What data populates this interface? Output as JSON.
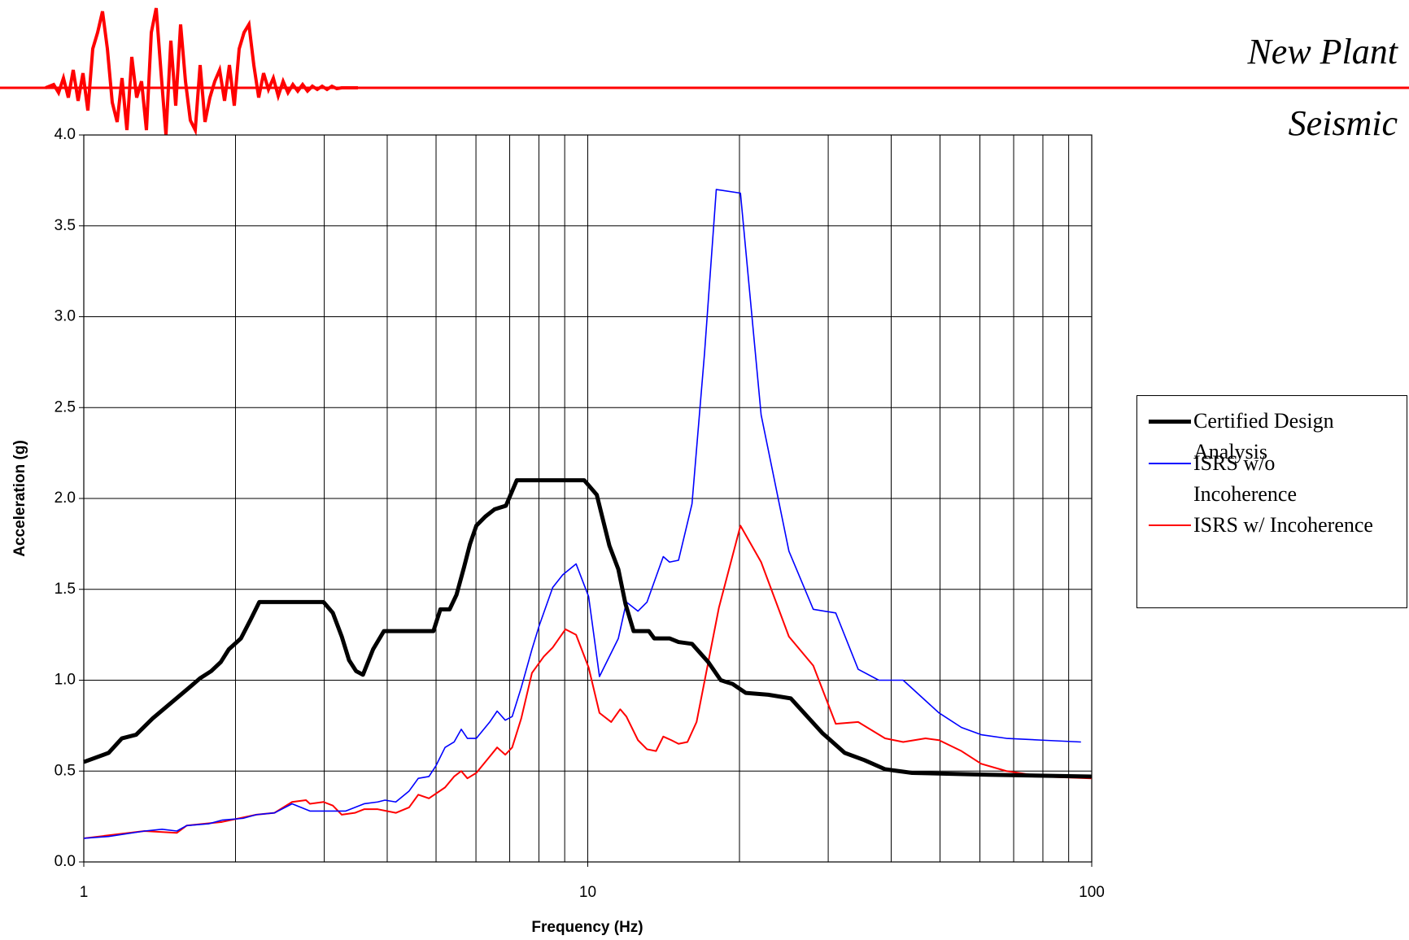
{
  "header": {
    "line1": "New Plant",
    "line2": "Seismic"
  },
  "chart_data": {
    "type": "line",
    "xlabel": "Frequency (Hz)",
    "ylabel": "Acceleration (g)",
    "xscale": "log",
    "xlim": [
      1,
      100
    ],
    "xticks": [
      1,
      10,
      100
    ],
    "minor_xticks": [
      2,
      3,
      4,
      5,
      6,
      7,
      8,
      9,
      20,
      30,
      40,
      50,
      60,
      70,
      80,
      90
    ],
    "ylim": [
      0,
      4
    ],
    "yticks": [
      {
        "value": 0,
        "label": "0.0"
      },
      {
        "value": 0.5,
        "label": "0.5"
      },
      {
        "value": 1,
        "label": "1.0"
      },
      {
        "value": 1.5,
        "label": "1.5"
      },
      {
        "value": 2,
        "label": "2.0"
      },
      {
        "value": 2.5,
        "label": "2.5"
      },
      {
        "value": 3,
        "label": "3.0"
      },
      {
        "value": 3.5,
        "label": "3.5"
      },
      {
        "value": 4,
        "label": "4.0"
      }
    ],
    "grid": true,
    "legend": "right",
    "series": [
      {
        "name": "Certified Design Analysis",
        "color": "#000000",
        "width": 5,
        "x": [
          1,
          1.12,
          1.19,
          1.27,
          1.37,
          1.62,
          1.7,
          1.79,
          1.87,
          1.94,
          2.05,
          2.14,
          2.23,
          2.99,
          3.12,
          3.25,
          3.36,
          3.47,
          3.58,
          3.75,
          3.94,
          4.94,
          5.1,
          5.32,
          5.49,
          5.68,
          5.84,
          6.01,
          6.26,
          6.53,
          6.88,
          7.23,
          9.84,
          10.42,
          11.04,
          11.5,
          11.88,
          12.33,
          13.22,
          13.55,
          14.53,
          15.14,
          16.1,
          17.34,
          18.36,
          19.36,
          20.59,
          22.82,
          25.28,
          29.19,
          32.35,
          35.4,
          38.9,
          44.01,
          62.37,
          100
        ],
        "values": [
          0.55,
          0.6,
          0.68,
          0.7,
          0.79,
          0.96,
          1.01,
          1.05,
          1.1,
          1.17,
          1.23,
          1.33,
          1.43,
          1.43,
          1.37,
          1.24,
          1.11,
          1.05,
          1.03,
          1.17,
          1.27,
          1.27,
          1.39,
          1.39,
          1.47,
          1.62,
          1.75,
          1.85,
          1.9,
          1.94,
          1.96,
          2.1,
          2.1,
          2.02,
          1.74,
          1.61,
          1.42,
          1.27,
          1.27,
          1.23,
          1.23,
          1.21,
          1.2,
          1.1,
          1.0,
          0.98,
          0.93,
          0.92,
          0.9,
          0.71,
          0.6,
          0.56,
          0.51,
          0.49,
          0.48,
          0.47
        ]
      },
      {
        "name": "ISRS w/o Incoherence",
        "color": "#0000ff",
        "width": 1.6,
        "x": [
          1,
          1.12,
          1.32,
          1.43,
          1.53,
          1.6,
          1.77,
          1.88,
          2.07,
          2.2,
          2.39,
          2.59,
          2.81,
          3.05,
          3.31,
          3.6,
          3.83,
          3.96,
          4.16,
          4.42,
          4.61,
          4.84,
          5.0,
          5.21,
          5.43,
          5.61,
          5.77,
          6.01,
          6.39,
          6.61,
          6.86,
          7.08,
          7.38,
          7.75,
          8.01,
          8.52,
          8.92,
          9.48,
          10.04,
          10.55,
          11.5,
          11.93,
          12.58,
          13.11,
          14.12,
          14.53,
          15.14,
          16.1,
          17.05,
          17.99,
          20.09,
          22.08,
          25.07,
          28.02,
          31.05,
          34.4,
          37.8,
          42.25,
          49.77,
          55.15,
          60.36,
          67.72,
          79.8,
          95.2
        ],
        "values": [
          0.13,
          0.14,
          0.17,
          0.18,
          0.17,
          0.2,
          0.21,
          0.23,
          0.24,
          0.26,
          0.27,
          0.32,
          0.28,
          0.28,
          0.28,
          0.32,
          0.33,
          0.34,
          0.33,
          0.39,
          0.46,
          0.47,
          0.53,
          0.63,
          0.66,
          0.73,
          0.68,
          0.68,
          0.77,
          0.83,
          0.78,
          0.8,
          0.96,
          1.17,
          1.3,
          1.51,
          1.58,
          1.64,
          1.46,
          1.02,
          1.23,
          1.43,
          1.38,
          1.43,
          1.68,
          1.65,
          1.66,
          1.97,
          2.8,
          3.7,
          3.68,
          2.46,
          1.71,
          1.39,
          1.37,
          1.06,
          1.0,
          1.0,
          0.82,
          0.74,
          0.7,
          0.68,
          0.67,
          0.66
        ]
      },
      {
        "name": "ISRS w/ Incoherence",
        "color": "#ff0000",
        "width": 2,
        "x": [
          1,
          1.32,
          1.53,
          1.6,
          1.88,
          2.2,
          2.39,
          2.59,
          2.76,
          2.81,
          2.99,
          3.12,
          3.25,
          3.45,
          3.6,
          3.83,
          4.16,
          4.42,
          4.61,
          4.84,
          5.21,
          5.43,
          5.61,
          5.77,
          6.01,
          6.39,
          6.61,
          6.86,
          7.08,
          7.38,
          7.75,
          8.18,
          8.52,
          9.03,
          9.48,
          10.04,
          10.55,
          11.13,
          11.6,
          11.93,
          12.58,
          13.11,
          13.66,
          14.12,
          14.65,
          15.14,
          15.77,
          16.44,
          18.21,
          20.09,
          22.08,
          25.07,
          28.02,
          31.05,
          34.4,
          38.9,
          42.25,
          46.8,
          49.77,
          55.15,
          60.36,
          67.72,
          79.8,
          100
        ],
        "values": [
          0.13,
          0.17,
          0.16,
          0.2,
          0.22,
          0.26,
          0.27,
          0.33,
          0.34,
          0.32,
          0.33,
          0.31,
          0.26,
          0.27,
          0.29,
          0.29,
          0.27,
          0.3,
          0.37,
          0.35,
          0.41,
          0.47,
          0.5,
          0.46,
          0.49,
          0.58,
          0.63,
          0.59,
          0.63,
          0.79,
          1.04,
          1.13,
          1.18,
          1.28,
          1.25,
          1.07,
          0.82,
          0.77,
          0.84,
          0.8,
          0.67,
          0.62,
          0.61,
          0.69,
          0.67,
          0.65,
          0.66,
          0.77,
          1.4,
          1.85,
          1.65,
          1.24,
          1.08,
          0.76,
          0.77,
          0.68,
          0.66,
          0.68,
          0.67,
          0.61,
          0.54,
          0.5,
          0.47,
          0.46
        ]
      }
    ]
  }
}
